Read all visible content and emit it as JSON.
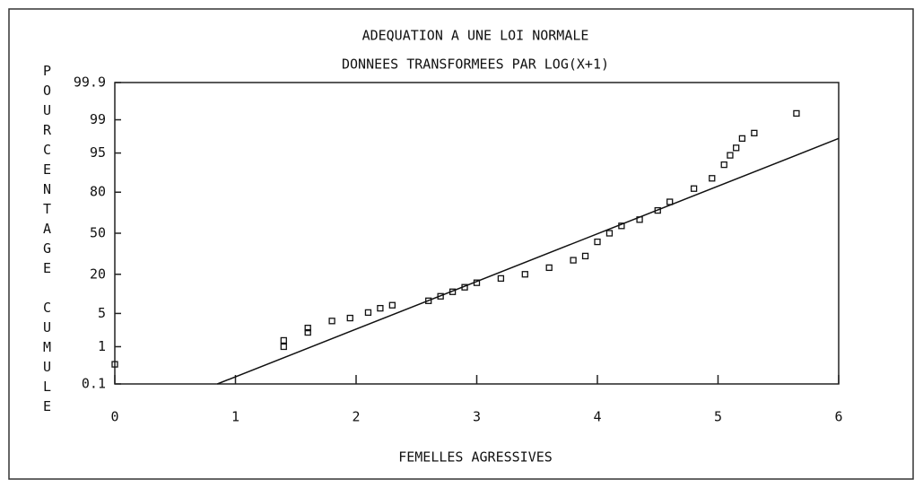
{
  "chart_data": {
    "type": "scatter",
    "title": "ADEQUATION A UNE LOI NORMALE",
    "subtitle": "DONNEES TRANSFORMEES PAR LOG(X+1)",
    "x_label": "FEMELLES AGRESSIVES",
    "y_label": "POURCENTAGE CUMULE",
    "yscale": "probit",
    "xlim": [
      0,
      6
    ],
    "xticks": [
      0,
      1,
      2,
      3,
      4,
      5,
      6
    ],
    "ylim": [
      0.1,
      99.9
    ],
    "yticks": [
      0.1,
      1,
      5,
      20,
      50,
      80,
      95,
      99,
      99.9
    ],
    "series": [
      {
        "color": "#111111",
        "marker": "square",
        "x": [
          0,
          1.4,
          1.4,
          1.6,
          1.6,
          1.8,
          1.95,
          2.1,
          2.2,
          2.3,
          2.6,
          2.7,
          2.8,
          2.9,
          3.0,
          3.2,
          3.4,
          3.6,
          3.8,
          3.9,
          4.0,
          4.1,
          4.2,
          4.35,
          4.5,
          4.6,
          4.8,
          4.95,
          5.05,
          5.1,
          5.15,
          5.2,
          5.3,
          5.65
        ],
        "values": [
          0.36,
          1.4,
          1.0,
          2.6,
          2.1,
          3.6,
          4.1,
          5.2,
          6.2,
          7,
          8.3,
          9.8,
          11.5,
          13.4,
          15.5,
          17.7,
          20,
          24,
          29,
          32,
          43,
          50,
          56,
          61,
          68,
          74,
          82,
          87,
          92,
          94.5,
          96,
          97.4,
          98,
          99.3
        ]
      },
      {
        "color": "#111111",
        "marker": "line",
        "x": [
          0.85,
          6
        ],
        "values": [
          0.1,
          97.4
        ]
      }
    ]
  }
}
